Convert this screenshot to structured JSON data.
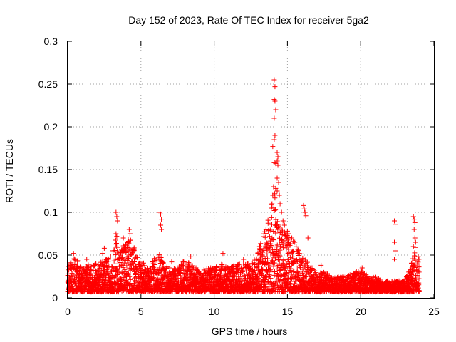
{
  "chart_data": {
    "type": "scatter",
    "title": "Day 152 of 2023, Rate Of TEC Index for receiver 5ga2",
    "xlabel": "GPS time / hours",
    "ylabel": "ROTI / TECUs",
    "xlim": [
      0,
      25
    ],
    "ylim": [
      0,
      0.3
    ],
    "xticks": [
      "0",
      "5",
      "10",
      "15",
      "20",
      "25"
    ],
    "yticks": [
      "0",
      "0.05",
      "0.1",
      "0.15",
      "0.2",
      "0.25",
      "0.3"
    ],
    "grid": true,
    "marker": "plus",
    "color": "#ff0000",
    "series": [
      {
        "points_description_only": false,
        "envelope": [
          [
            0.0,
            0.035
          ],
          [
            0.3,
            0.045
          ],
          [
            0.5,
            0.05
          ],
          [
            0.8,
            0.04
          ],
          [
            1.0,
            0.035
          ],
          [
            1.5,
            0.04
          ],
          [
            2.0,
            0.04
          ],
          [
            2.5,
            0.045
          ],
          [
            3.0,
            0.05
          ],
          [
            3.3,
            0.07
          ],
          [
            3.5,
            0.06
          ],
          [
            4.0,
            0.065
          ],
          [
            4.3,
            0.075
          ],
          [
            4.6,
            0.055
          ],
          [
            5.0,
            0.045
          ],
          [
            5.5,
            0.035
          ],
          [
            6.0,
            0.05
          ],
          [
            6.3,
            0.055
          ],
          [
            6.6,
            0.04
          ],
          [
            7.0,
            0.035
          ],
          [
            7.5,
            0.035
          ],
          [
            8.0,
            0.045
          ],
          [
            8.5,
            0.04
          ],
          [
            9.0,
            0.03
          ],
          [
            9.5,
            0.035
          ],
          [
            10.0,
            0.035
          ],
          [
            10.5,
            0.04
          ],
          [
            11.0,
            0.035
          ],
          [
            11.5,
            0.04
          ],
          [
            12.0,
            0.04
          ],
          [
            12.5,
            0.04
          ],
          [
            13.0,
            0.055
          ],
          [
            13.3,
            0.07
          ],
          [
            13.6,
            0.09
          ],
          [
            13.9,
            0.11
          ],
          [
            14.1,
            0.13
          ],
          [
            14.4,
            0.09
          ],
          [
            14.7,
            0.08
          ],
          [
            15.0,
            0.075
          ],
          [
            15.3,
            0.06
          ],
          [
            15.6,
            0.06
          ],
          [
            16.0,
            0.05
          ],
          [
            16.5,
            0.04
          ],
          [
            17.0,
            0.03
          ],
          [
            17.5,
            0.03
          ],
          [
            18.0,
            0.025
          ],
          [
            18.5,
            0.025
          ],
          [
            19.0,
            0.025
          ],
          [
            19.5,
            0.03
          ],
          [
            20.0,
            0.035
          ],
          [
            20.5,
            0.025
          ],
          [
            21.0,
            0.025
          ],
          [
            21.5,
            0.02
          ],
          [
            22.0,
            0.02
          ],
          [
            22.5,
            0.02
          ],
          [
            23.0,
            0.02
          ],
          [
            23.4,
            0.035
          ],
          [
            23.7,
            0.06
          ],
          [
            24.0,
            0.045
          ]
        ],
        "spikes": [
          [
            3.3,
            0.1
          ],
          [
            3.35,
            0.095
          ],
          [
            3.4,
            0.09
          ],
          [
            3.3,
            0.075
          ],
          [
            3.35,
            0.072
          ],
          [
            4.2,
            0.08
          ],
          [
            4.25,
            0.075
          ],
          [
            3.8,
            0.07
          ],
          [
            6.3,
            0.1
          ],
          [
            6.35,
            0.098
          ],
          [
            6.4,
            0.092
          ],
          [
            6.35,
            0.085
          ],
          [
            6.4,
            0.08
          ],
          [
            13.9,
            0.105
          ],
          [
            13.95,
            0.11
          ],
          [
            14.0,
            0.12
          ],
          [
            14.05,
            0.13
          ],
          [
            14.1,
            0.255
          ],
          [
            14.15,
            0.247
          ],
          [
            14.1,
            0.232
          ],
          [
            14.15,
            0.23
          ],
          [
            14.2,
            0.22
          ],
          [
            14.1,
            0.21
          ],
          [
            14.15,
            0.19
          ],
          [
            14.1,
            0.185
          ],
          [
            14.0,
            0.177
          ],
          [
            14.3,
            0.17
          ],
          [
            14.35,
            0.165
          ],
          [
            14.3,
            0.16
          ],
          [
            14.1,
            0.158
          ],
          [
            14.2,
            0.157
          ],
          [
            14.35,
            0.155
          ],
          [
            14.3,
            0.14
          ],
          [
            14.4,
            0.135
          ],
          [
            14.2,
            0.128
          ],
          [
            14.3,
            0.125
          ],
          [
            14.45,
            0.12
          ],
          [
            14.5,
            0.11
          ],
          [
            14.6,
            0.1
          ],
          [
            14.7,
            0.09
          ],
          [
            14.8,
            0.085
          ],
          [
            15.0,
            0.078
          ],
          [
            15.1,
            0.075
          ],
          [
            15.3,
            0.07
          ],
          [
            15.5,
            0.065
          ],
          [
            16.1,
            0.108
          ],
          [
            16.15,
            0.104
          ],
          [
            16.2,
            0.1
          ],
          [
            16.25,
            0.096
          ],
          [
            16.4,
            0.07
          ],
          [
            22.3,
            0.09
          ],
          [
            22.35,
            0.086
          ],
          [
            22.3,
            0.065
          ],
          [
            22.35,
            0.055
          ],
          [
            22.3,
            0.045
          ],
          [
            23.6,
            0.095
          ],
          [
            23.65,
            0.092
          ],
          [
            23.7,
            0.088
          ],
          [
            23.65,
            0.08
          ],
          [
            23.7,
            0.07
          ],
          [
            23.75,
            0.065
          ],
          [
            23.6,
            0.06
          ],
          [
            0.4,
            0.052
          ],
          [
            1.3,
            0.045
          ],
          [
            2.4,
            0.052
          ],
          [
            2.5,
            0.058
          ],
          [
            5.8,
            0.042
          ],
          [
            7.1,
            0.042
          ],
          [
            8.4,
            0.048
          ],
          [
            10.6,
            0.052
          ],
          [
            12.0,
            0.045
          ],
          [
            13.1,
            0.06
          ],
          [
            15.4,
            0.066
          ],
          [
            17.3,
            0.038
          ],
          [
            20.1,
            0.035
          ]
        ]
      }
    ]
  }
}
